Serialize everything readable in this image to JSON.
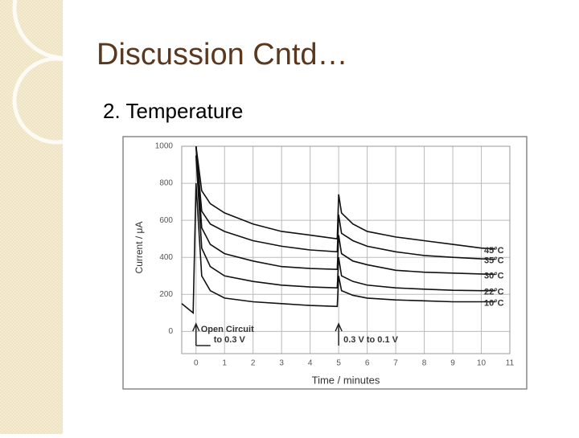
{
  "slide": {
    "title": "Discussion Cntd…",
    "subtitle": "2. Temperature"
  },
  "chart_data": {
    "type": "line",
    "x_label": "Time / minutes",
    "y_label": "Current / μA",
    "x": [
      -0.5,
      -0.1,
      0,
      0.2,
      0.5,
      1,
      2,
      3,
      4,
      4.95,
      5,
      5.1,
      5.5,
      6,
      7,
      8,
      9,
      10,
      10.5
    ],
    "series": [
      {
        "name": "45°C",
        "color": "#111111",
        "values": [
          null,
          null,
          1000,
          760,
          690,
          640,
          580,
          540,
          520,
          500,
          740,
          640,
          580,
          540,
          510,
          490,
          470,
          450,
          445
        ]
      },
      {
        "name": "35°C",
        "color": "#111111",
        "values": [
          null,
          null,
          1000,
          650,
          580,
          540,
          490,
          460,
          440,
          430,
          630,
          530,
          490,
          460,
          430,
          410,
          400,
          392,
          390
        ]
      },
      {
        "name": "30°C",
        "color": "#111111",
        "values": [
          null,
          null,
          1000,
          560,
          470,
          420,
          380,
          350,
          340,
          335,
          520,
          420,
          380,
          360,
          330,
          320,
          315,
          310,
          308
        ]
      },
      {
        "name": "22°C",
        "color": "#111111",
        "values": [
          null,
          null,
          950,
          450,
          350,
          300,
          270,
          250,
          240,
          235,
          400,
          300,
          270,
          250,
          235,
          228,
          222,
          220,
          220
        ]
      },
      {
        "name": "10°C",
        "color": "#111111",
        "values": [
          150,
          100,
          800,
          300,
          220,
          180,
          160,
          150,
          140,
          135,
          300,
          220,
          195,
          180,
          170,
          165,
          160,
          160,
          160
        ]
      }
    ],
    "annotations": [
      {
        "x": 0,
        "lines": [
          "Open Circuit",
          "to 0.3 V"
        ]
      },
      {
        "x": 5,
        "lines": [
          "0.3 V to 0.1 V"
        ]
      }
    ],
    "xlim": [
      -0.5,
      11
    ],
    "ylim": [
      -120,
      1000
    ],
    "xticks": [
      0,
      1,
      2,
      3,
      4,
      5,
      6,
      7,
      8,
      9,
      10,
      11
    ],
    "yticks": [
      0,
      200,
      400,
      600,
      800,
      1000
    ],
    "grid": true
  }
}
